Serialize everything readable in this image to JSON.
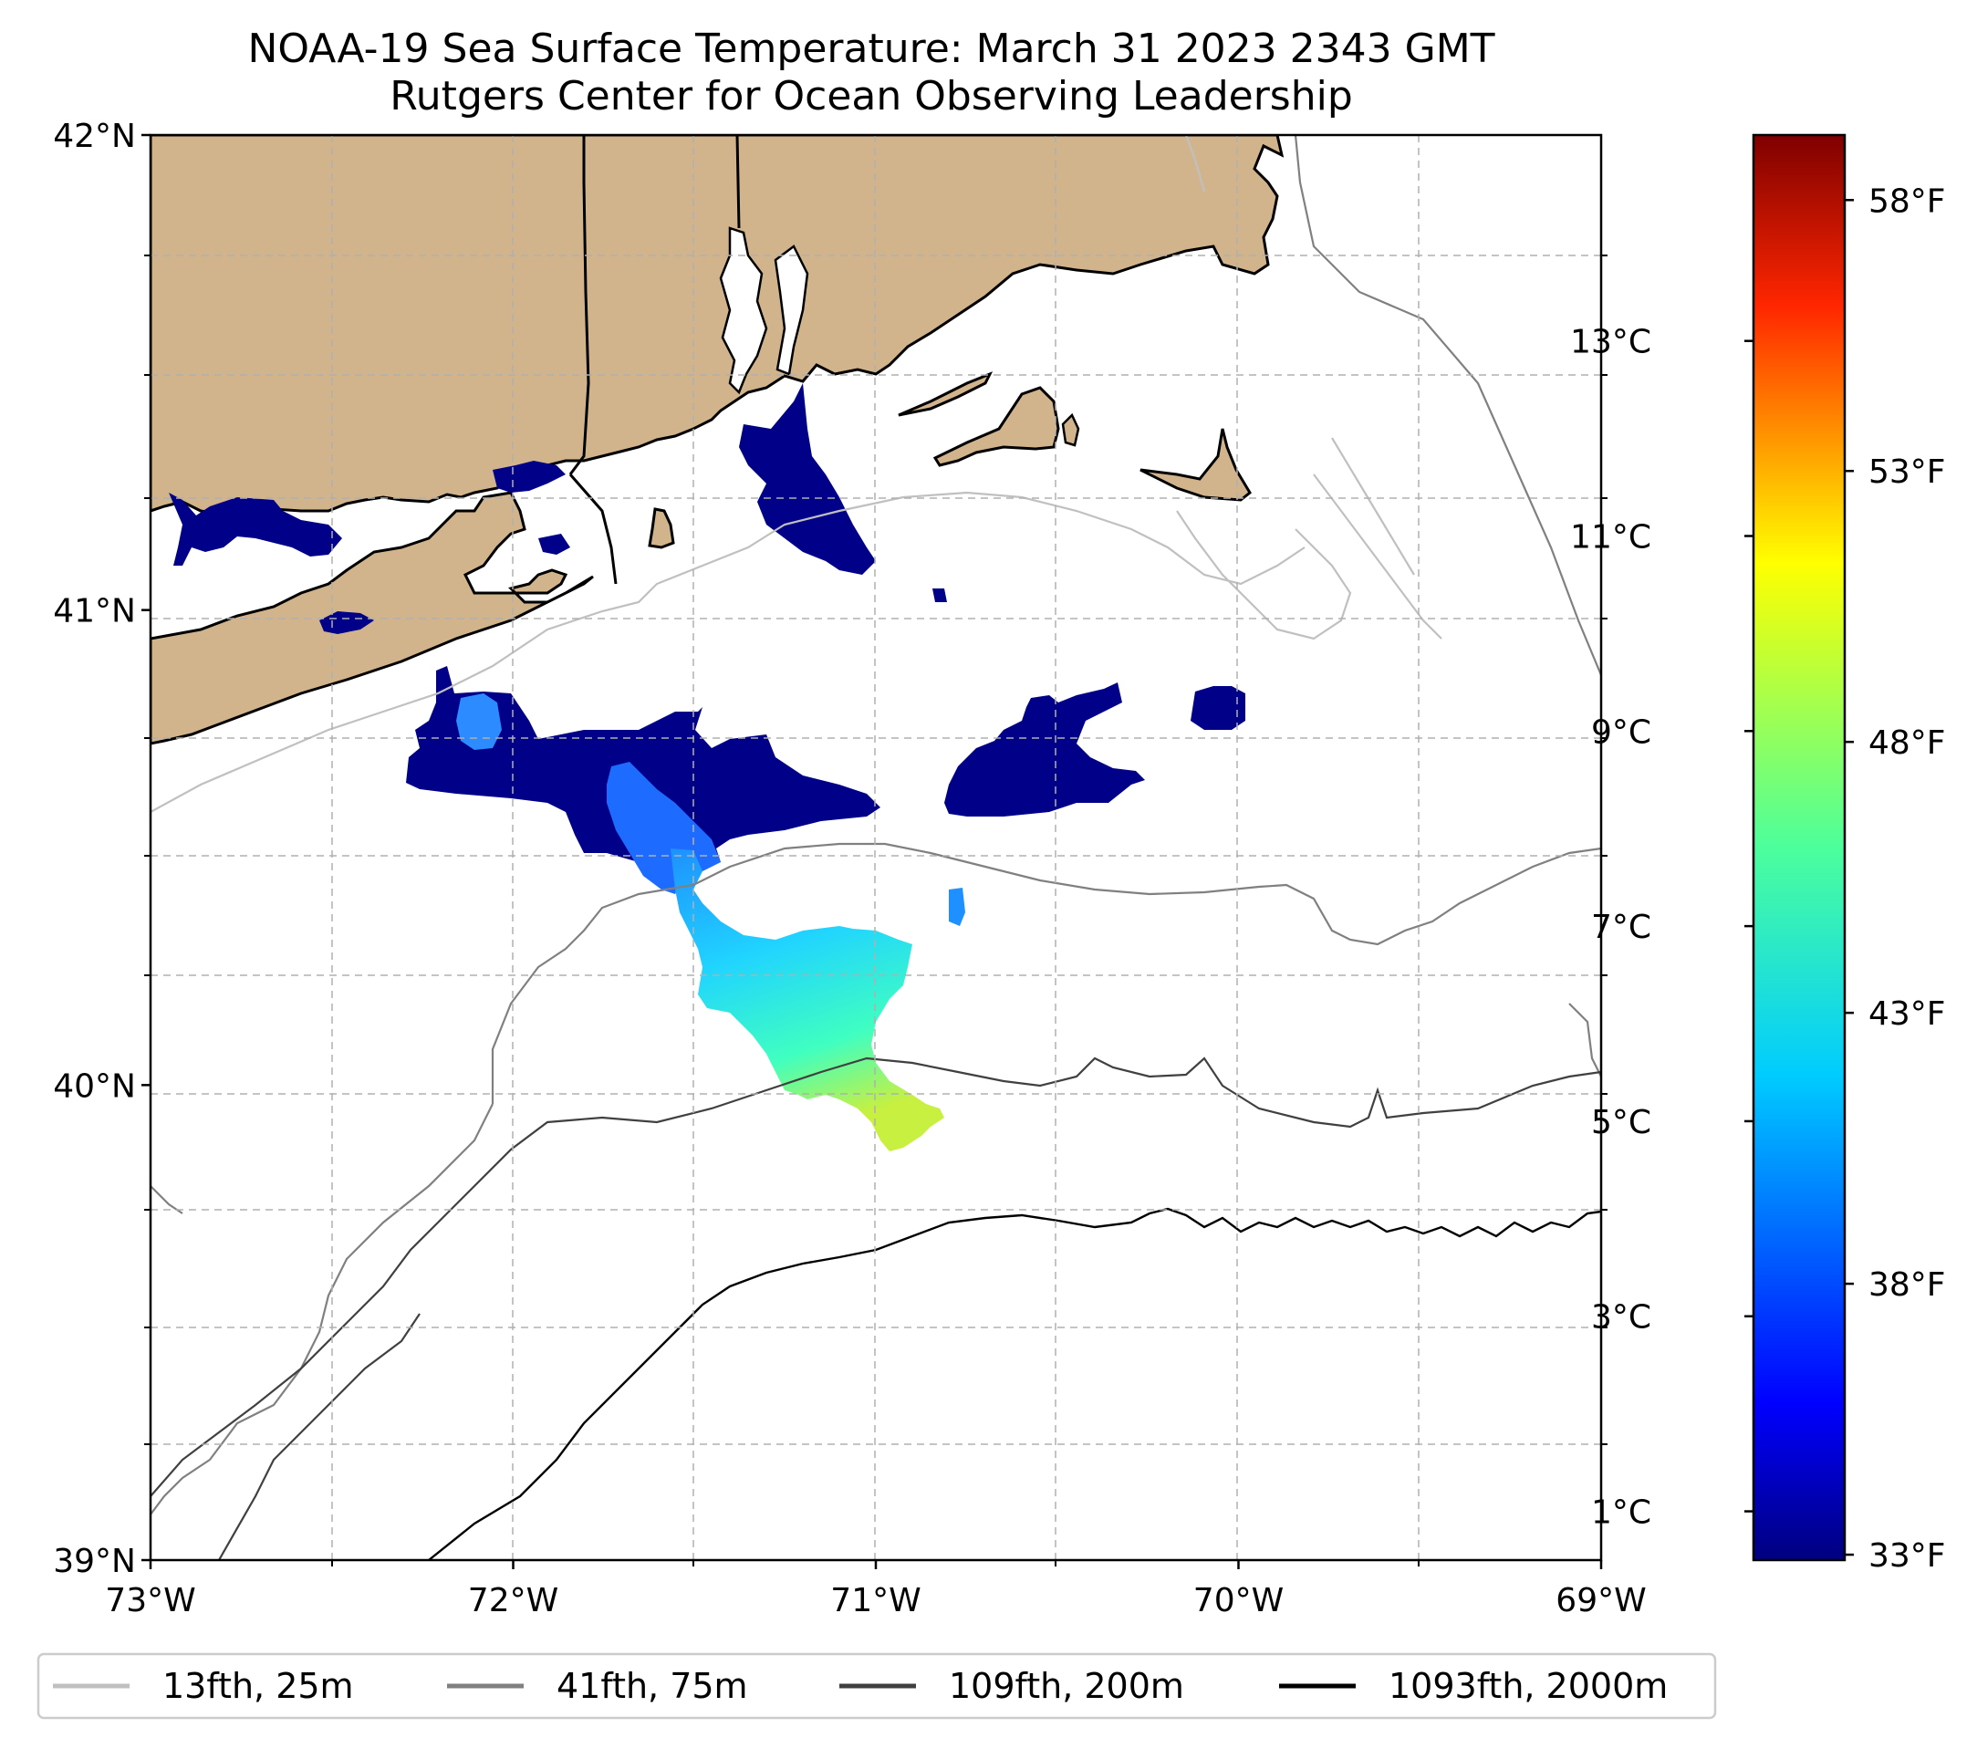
{
  "title_line1": "NOAA-19 Sea Surface Temperature: March 31 2023 2343 GMT",
  "title_line2": "Rutgers Center for Ocean Observing Leadership",
  "map": {
    "lat_ticks": [
      {
        "value": 42,
        "label": "42°N"
      },
      {
        "value": 41,
        "label": "41°N"
      },
      {
        "value": 40,
        "label": "40°N"
      },
      {
        "value": 39,
        "label": "39°N"
      }
    ],
    "lon_ticks": [
      {
        "value": -73,
        "label": "73°W"
      },
      {
        "value": -72,
        "label": "72°W"
      },
      {
        "value": -71,
        "label": "71°W"
      },
      {
        "value": -70,
        "label": "70°W"
      },
      {
        "value": -69,
        "label": "69°W"
      }
    ],
    "lat_range": [
      39,
      42
    ],
    "lon_range": [
      -73,
      -69
    ],
    "land_color": "#d2b48c",
    "sst_colormap": "jet"
  },
  "colorbar": {
    "celsius_ticks": [
      {
        "value": 1,
        "label": "1°C"
      },
      {
        "value": 3,
        "label": "3°C"
      },
      {
        "value": 5,
        "label": "5°C"
      },
      {
        "value": 7,
        "label": "7°C"
      },
      {
        "value": 9,
        "label": "9°C"
      },
      {
        "value": 11,
        "label": "11°C"
      },
      {
        "value": 13,
        "label": "13°C"
      }
    ],
    "fahrenheit_ticks": [
      {
        "value": 33,
        "label": "33°F"
      },
      {
        "value": 38,
        "label": "38°F"
      },
      {
        "value": 43,
        "label": "43°F"
      },
      {
        "value": 48,
        "label": "48°F"
      },
      {
        "value": 53,
        "label": "53°F"
      },
      {
        "value": 58,
        "label": "58°F"
      }
    ],
    "range_f": [
      32.9,
      59.2
    ]
  },
  "legend": [
    {
      "label": "13fth, 25m",
      "color": "#c0c0c0"
    },
    {
      "label": "41fth, 75m",
      "color": "#808080"
    },
    {
      "label": "109fth, 200m",
      "color": "#404040"
    },
    {
      "label": "1093fth, 2000m",
      "color": "#000000"
    }
  ]
}
